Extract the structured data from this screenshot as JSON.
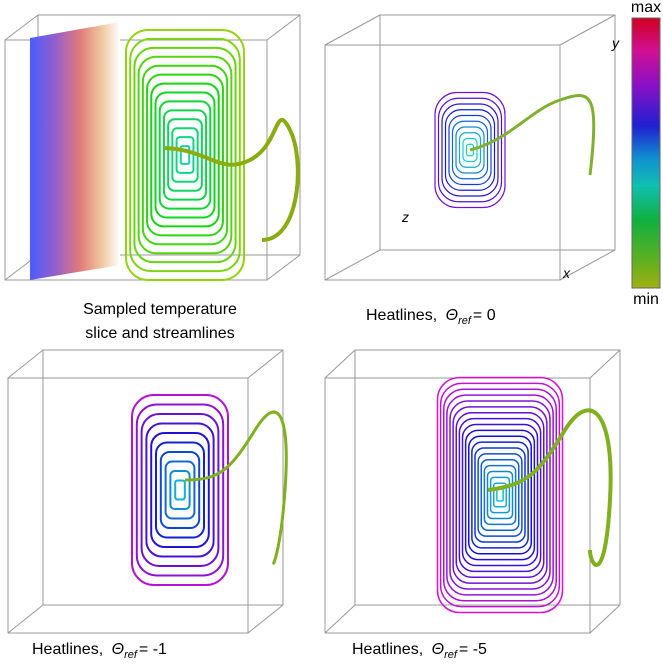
{
  "panels": [
    {
      "caption": [
        "Sampled temperature",
        "slice and streamlines"
      ]
    },
    {
      "caption": {
        "label": "Heatlines,",
        "symbol": "Θ",
        "subscript": "ref",
        "value": "= 0"
      },
      "axis_labels": {
        "y": "y",
        "z": "z",
        "x": "x"
      }
    },
    {
      "caption": {
        "label": "Heatlines,",
        "symbol": "Θ",
        "subscript": "ref",
        "value": "= -1"
      }
    },
    {
      "caption": {
        "label": "Heatlines,",
        "symbol": "Θ",
        "subscript": "ref",
        "value": "= -5"
      }
    }
  ],
  "colorbar": {
    "max": "max",
    "min": "min"
  }
}
